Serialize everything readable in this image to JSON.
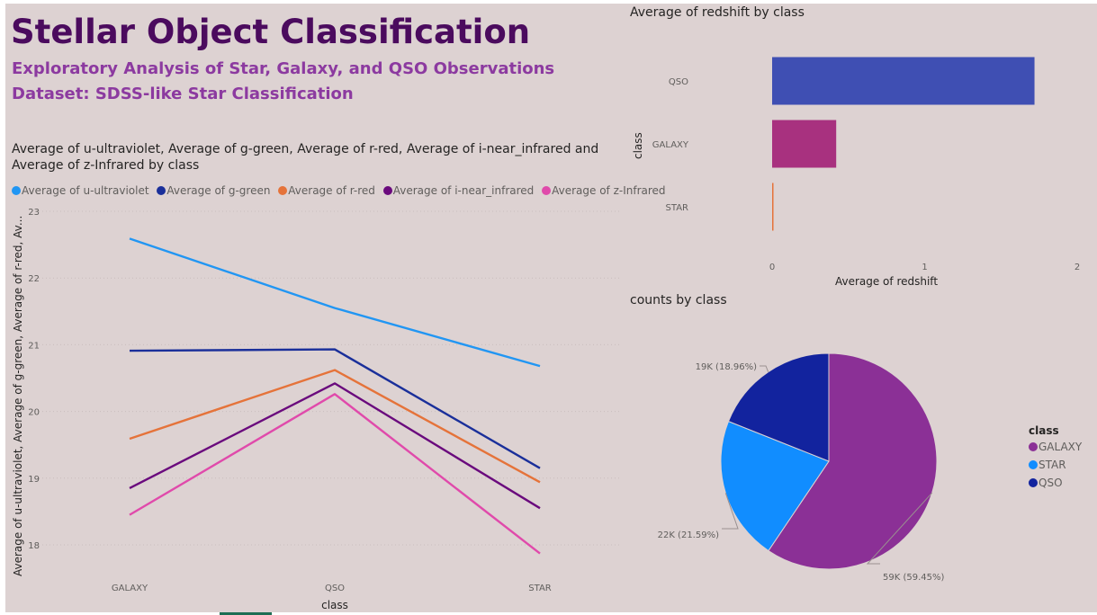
{
  "header": {
    "title": "Stellar Object Classification",
    "subtitle1": "Exploratory Analysis of Star, Galaxy, and QSO Observations",
    "subtitle2": "Dataset: SDSS-like Star Classification"
  },
  "line_chart": {
    "title": "Average of u-ultraviolet, Average of g-green, Average of r-red, Average of i-near_infrared and Average of z-Infrared by class",
    "xlabel": "class",
    "ylabel": "Average of u-ultraviolet, Average of g-green, Average of r-red, Av...",
    "legend": [
      {
        "label": "Average of u-ultraviolet",
        "color": "#2196f3"
      },
      {
        "label": "Average of g-green",
        "color": "#1a2f9a"
      },
      {
        "label": "Average of r-red",
        "color": "#e5733a"
      },
      {
        "label": "Average of i-near_infrared",
        "color": "#6a0a7d"
      },
      {
        "label": "Average of z-Infrared",
        "color": "#e04aab"
      }
    ]
  },
  "bar_chart": {
    "title": "Average of redshift by class",
    "xlabel": "Average of redshift",
    "ylabel": "class"
  },
  "pie_chart": {
    "title": "counts by class",
    "legend_title": "class",
    "legend": [
      {
        "label": "GALAXY",
        "color": "#8b3096"
      },
      {
        "label": "STAR",
        "color": "#118dff"
      },
      {
        "label": "QSO",
        "color": "#12239e"
      }
    ]
  },
  "chart_data": [
    {
      "type": "line",
      "categories": [
        "GALAXY",
        "QSO",
        "STAR"
      ],
      "ylim": [
        18,
        23
      ],
      "yticks": [
        "23",
        "22",
        "21",
        "20",
        "19",
        "18"
      ],
      "grid": true,
      "legend_position": "top",
      "series": [
        {
          "name": "Average of u-ultraviolet",
          "values": [
            22.59,
            21.55,
            20.68
          ],
          "color": "#2196f3"
        },
        {
          "name": "Average of g-green",
          "values": [
            20.91,
            20.93,
            19.15
          ],
          "color": "#1a2f9a"
        },
        {
          "name": "Average of r-red",
          "values": [
            19.59,
            20.62,
            18.94
          ],
          "color": "#e5733a"
        },
        {
          "name": "Average of i-near_infrared",
          "values": [
            18.85,
            20.42,
            18.55
          ],
          "color": "#6a0a7d"
        },
        {
          "name": "Average of z-Infrared",
          "values": [
            18.45,
            20.26,
            17.87
          ],
          "color": "#e04aab"
        }
      ]
    },
    {
      "type": "bar",
      "orientation": "horizontal",
      "categories": [
        "QSO",
        "GALAXY",
        "STAR"
      ],
      "values": [
        1.72,
        0.42,
        0.0
      ],
      "colors": [
        "#3f4fb3",
        "#a8317f",
        "#e5733a"
      ],
      "xlim": [
        0,
        2
      ],
      "xticks": [
        "0",
        "1",
        "2"
      ]
    },
    {
      "type": "pie",
      "categories": [
        "GALAXY",
        "STAR",
        "QSO"
      ],
      "values": [
        59445,
        21594,
        18961
      ],
      "labels": [
        "59K (59.45%)",
        "22K (21.59%)",
        "19K (18.96%)"
      ],
      "colors": [
        "#8b3096",
        "#118dff",
        "#12239e"
      ],
      "legend_position": "right"
    }
  ]
}
